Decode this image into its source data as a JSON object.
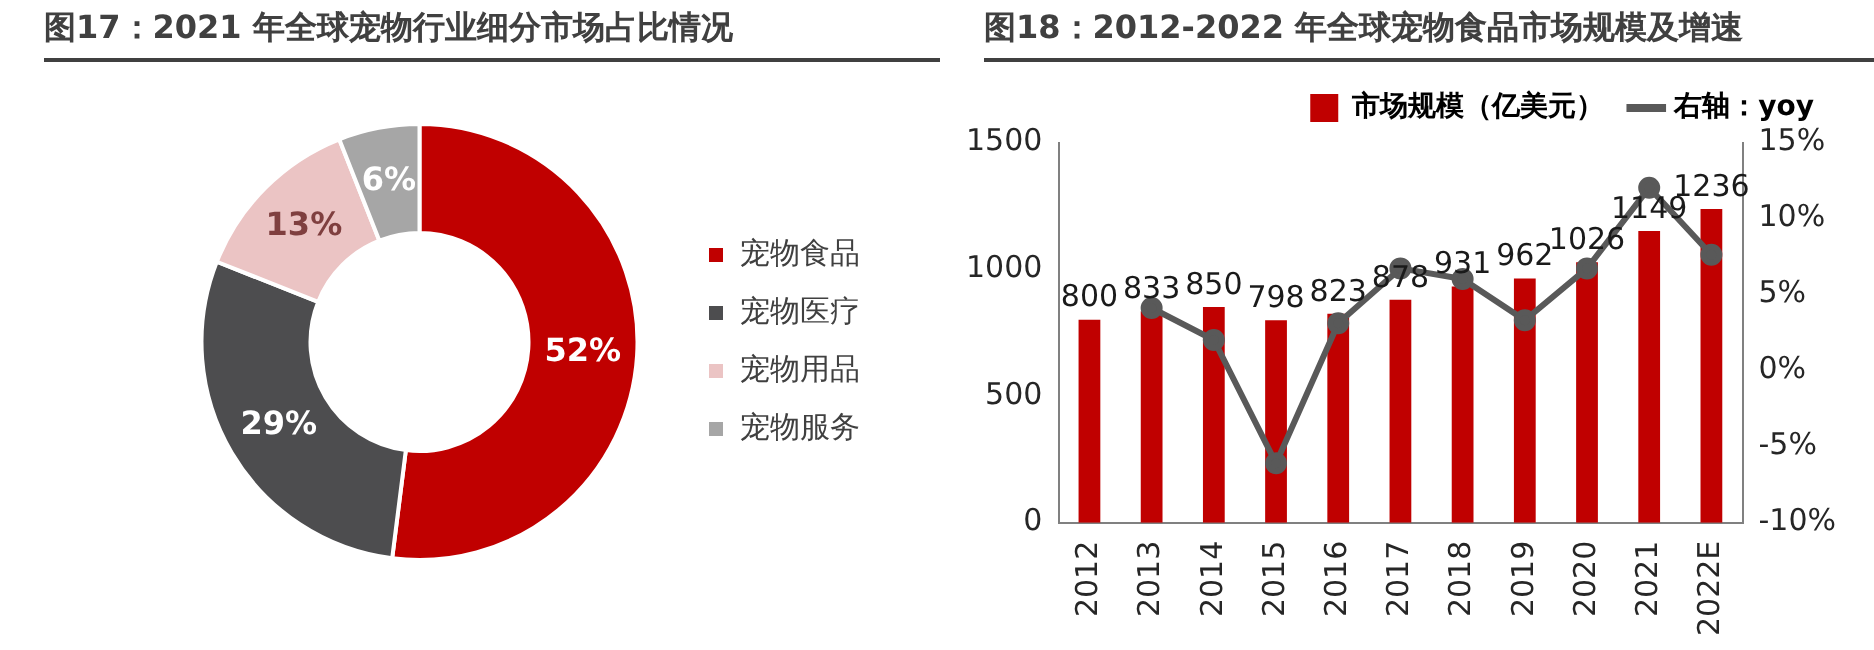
{
  "chart_data": [
    {
      "type": "donut",
      "title": "图17：2021 年全球宠物行业细分市场占比情况",
      "categories": [
        "宠物食品",
        "宠物医疗",
        "宠物用品",
        "宠物服务"
      ],
      "values": [
        52,
        29,
        13,
        6
      ],
      "value_labels": [
        "52%",
        "29%",
        "13%",
        "6%"
      ],
      "colors": [
        "#c00000",
        "#4d4d4f",
        "#ebc4c4",
        "#a6a6a6"
      ],
      "legend": "right"
    },
    {
      "type": "bar",
      "title": "图18：2012-2022 年全球宠物食品市场规模及增速",
      "categories": [
        "2012",
        "2013",
        "2014",
        "2015",
        "2016",
        "2017",
        "2018",
        "2019",
        "2020",
        "2021",
        "2022E"
      ],
      "series": [
        {
          "name": "市场规模（亿美元）",
          "type": "bar",
          "color": "#c00000",
          "values": [
            800,
            833,
            850,
            798,
            823,
            878,
            931,
            962,
            1026,
            1149,
            1236
          ],
          "value_labels": [
            "800",
            "833",
            "850",
            "798",
            "823",
            "878",
            "931",
            "962",
            "1026",
            "1149",
            "1236"
          ]
        },
        {
          "name": "右轴：yoy",
          "type": "line",
          "axis": "y2",
          "color": "#595959",
          "values": [
            null,
            4.1,
            2.0,
            -6.1,
            3.1,
            6.7,
            6.0,
            3.3,
            6.7,
            12.0,
            7.6
          ]
        }
      ],
      "ylim": [
        0,
        1500
      ],
      "yticks": [
        0,
        500,
        1000,
        1500
      ],
      "y2lim": [
        -10,
        15
      ],
      "y2ticks": [
        {
          "value": -10,
          "label": "-10%"
        },
        {
          "value": -5,
          "label": "-5%"
        },
        {
          "value": 0,
          "label": "0%"
        },
        {
          "value": 5,
          "label": "5%"
        },
        {
          "value": 10,
          "label": "10%"
        },
        {
          "value": 15,
          "label": "15%"
        }
      ],
      "grid": false,
      "legend": "top",
      "marker": "circle",
      "line_style": "solid"
    }
  ]
}
